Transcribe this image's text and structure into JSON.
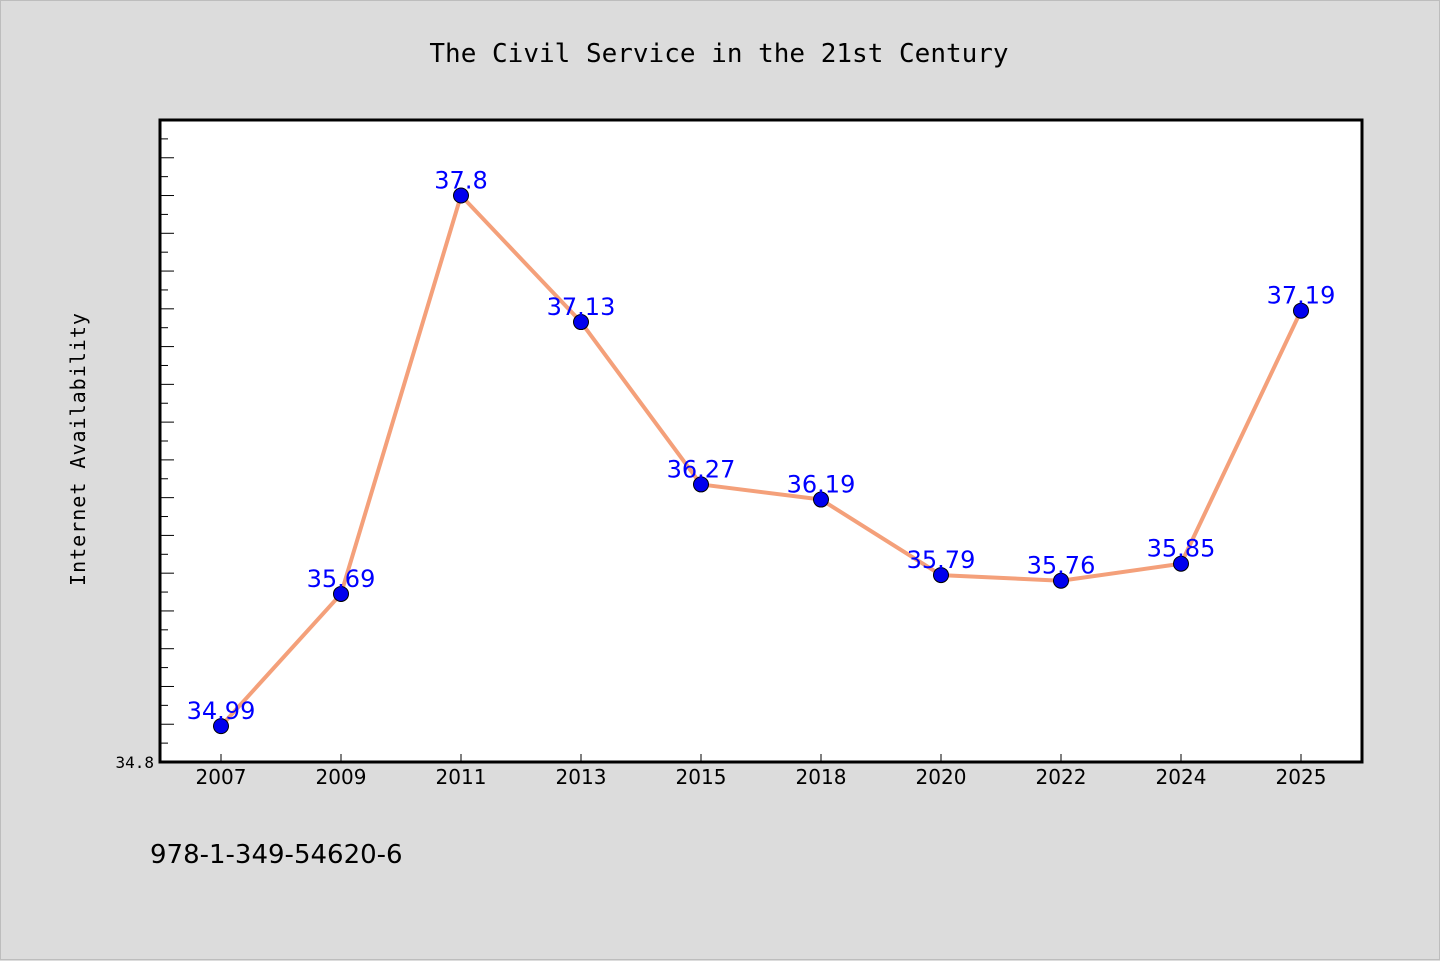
{
  "chart_data": {
    "type": "line",
    "title": "The Civil Service in the 21st Century",
    "xlabel": "",
    "ylabel": "Internet Availability",
    "categories": [
      "2007",
      "2009",
      "2011",
      "2013",
      "2015",
      "2018",
      "2020",
      "2022",
      "2024",
      "2025"
    ],
    "series": [
      {
        "values": [
          34.99,
          35.69,
          37.8,
          37.13,
          36.27,
          36.19,
          35.79,
          35.76,
          35.85,
          37.19
        ],
        "labels": [
          "34.99",
          "35.69",
          "37.8",
          "37.13",
          "36.27",
          "36.19",
          "35.79",
          "35.76",
          "35.85",
          "37.19"
        ],
        "line_color": "#f4a07a",
        "marker_color": "#0000ee"
      }
    ],
    "y_tick_labels": [
      "34.8"
    ],
    "ylim": [
      34.8,
      38.2
    ],
    "grid": false,
    "label_color": "#0000ff",
    "background_color": "#dcdcdc",
    "plot_background_color": "#ffffff"
  },
  "footer": {
    "isbn": "978-1-349-54620-6"
  }
}
